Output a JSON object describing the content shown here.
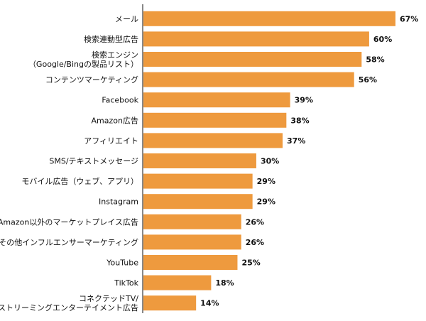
{
  "chart_data": {
    "type": "bar",
    "orientation": "horizontal",
    "title": "",
    "xlabel": "",
    "ylabel": "",
    "xlim": [
      0,
      67
    ],
    "grid": false,
    "legend": "none",
    "bar_color": "#EE9A3E",
    "axis_color": "#111111",
    "categories": [
      "メール",
      "検索連動型広告",
      "検索エンジン\n（Google/Bingの製品リスト）",
      "コンテンツマーケティング",
      "Facebook",
      "Amazon広告",
      "アフィリエイト",
      "SMS/テキストメッセージ",
      "モバイル広告（ウェブ、アプリ）",
      "Instagram",
      "Amazon以外のマーケットプレイス広告",
      "その他インフルエンサーマーケティング",
      "YouTube",
      "TikTok",
      "コネクテッドTV/\nストリーミングエンターテイメント広告"
    ],
    "values": [
      67,
      60,
      58,
      56,
      39,
      38,
      37,
      30,
      29,
      29,
      26,
      26,
      25,
      18,
      14
    ],
    "value_labels": [
      "67%",
      "60%",
      "58%",
      "56%",
      "39%",
      "38%",
      "37%",
      "30%",
      "29%",
      "29%",
      "26%",
      "26%",
      "25%",
      "18%",
      "14%"
    ]
  }
}
